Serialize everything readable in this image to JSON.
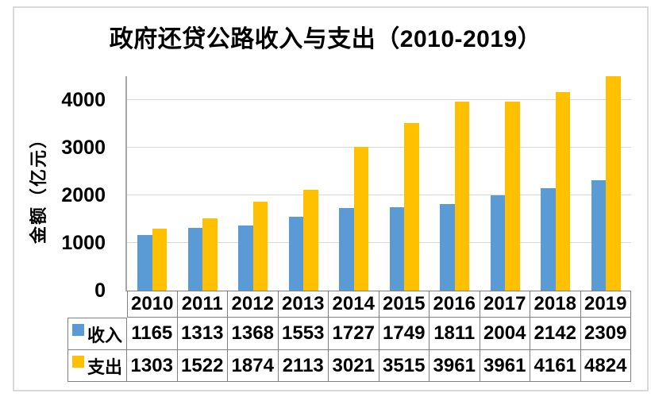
{
  "title": "政府还贷公路收入与支出（2010-2019）",
  "y_axis": {
    "label": "金额（亿元）",
    "ticks": [
      0,
      1000,
      2000,
      3000,
      4000
    ]
  },
  "colors": {
    "income": "#5B9BD5",
    "expense": "#FFC000",
    "gridline": "#D9D9D9",
    "axis_line": "#A6A6A6",
    "table_border": "#808080",
    "page_border": "#D9D9D9",
    "text": "#000000"
  },
  "chart_data": {
    "type": "bar",
    "title": "政府还贷公路收入与支出（2010-2019）",
    "xlabel": "",
    "ylabel": "金额（亿元）",
    "categories": [
      "2010",
      "2011",
      "2012",
      "2013",
      "2014",
      "2015",
      "2016",
      "2017",
      "2018",
      "2019"
    ],
    "series": [
      {
        "key": "income",
        "name": "收入",
        "color": "#5B9BD5",
        "values": [
          1165,
          1313,
          1368,
          1553,
          1727,
          1749,
          1811,
          2004,
          2142,
          2309
        ]
      },
      {
        "key": "expense",
        "name": "支出",
        "color": "#FFC000",
        "values": [
          1303,
          1522,
          1874,
          2113,
          3021,
          3515,
          3961,
          3961,
          4161,
          4824
        ]
      }
    ],
    "ylim": [
      0,
      4500
    ],
    "gridlines": [
      1000,
      2000,
      3000,
      4000
    ],
    "grid": true,
    "legend_position": "data-table-left",
    "data_table": true
  }
}
